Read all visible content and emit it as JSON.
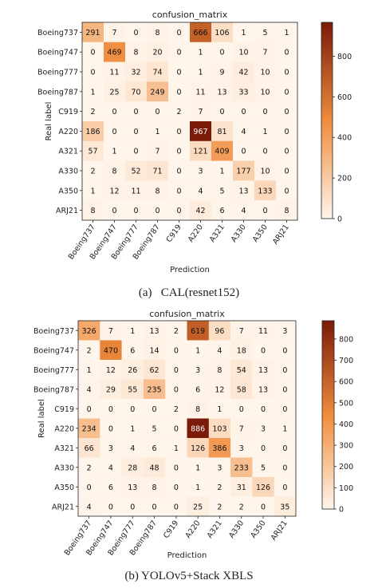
{
  "chart_data": [
    {
      "type": "heatmap",
      "title": "confusion_matrix",
      "xlabel": "Prediction",
      "ylabel": "Real label",
      "classes": [
        "Boeing737",
        "Boeing747",
        "Boeing777",
        "Boeing787",
        "C919",
        "A220",
        "A321",
        "A330",
        "A350",
        "ARJ21"
      ],
      "matrix": [
        [
          291,
          7,
          0,
          8,
          0,
          666,
          106,
          1,
          5,
          1
        ],
        [
          0,
          469,
          8,
          20,
          0,
          1,
          0,
          10,
          7,
          0
        ],
        [
          0,
          11,
          32,
          74,
          0,
          1,
          9,
          42,
          10,
          0
        ],
        [
          1,
          25,
          70,
          249,
          0,
          11,
          13,
          33,
          10,
          0
        ],
        [
          2,
          0,
          0,
          0,
          2,
          7,
          0,
          0,
          0,
          0
        ],
        [
          186,
          0,
          0,
          1,
          0,
          967,
          81,
          4,
          1,
          0
        ],
        [
          57,
          1,
          0,
          7,
          0,
          121,
          409,
          0,
          0,
          0
        ],
        [
          2,
          8,
          52,
          71,
          0,
          3,
          1,
          177,
          10,
          0
        ],
        [
          1,
          12,
          11,
          8,
          0,
          4,
          5,
          13,
          133,
          0
        ],
        [
          8,
          0,
          0,
          0,
          0,
          42,
          6,
          4,
          0,
          8
        ]
      ],
      "colorbar": {
        "ticks": [
          0,
          200,
          400,
          600,
          800
        ],
        "max": 967
      },
      "caption": "(a)   CAL(resnet152)"
    },
    {
      "type": "heatmap",
      "title": "confusion_matrix",
      "xlabel": "Prediction",
      "ylabel": "Real label",
      "classes": [
        "Boeing737",
        "Boeing747",
        "Boeing777",
        "Boeing787",
        "C919",
        "A220",
        "A321",
        "A330",
        "A350",
        "ARJ21"
      ],
      "matrix": [
        [
          326,
          7,
          1,
          13,
          2,
          619,
          96,
          7,
          11,
          3
        ],
        [
          2,
          470,
          6,
          14,
          0,
          1,
          4,
          18,
          0,
          0
        ],
        [
          1,
          12,
          26,
          62,
          0,
          3,
          8,
          54,
          13,
          0
        ],
        [
          4,
          29,
          55,
          235,
          0,
          6,
          12,
          58,
          13,
          0
        ],
        [
          0,
          0,
          0,
          0,
          2,
          8,
          1,
          0,
          0,
          0
        ],
        [
          234,
          0,
          1,
          5,
          0,
          886,
          103,
          7,
          3,
          1
        ],
        [
          66,
          3,
          4,
          6,
          1,
          126,
          386,
          3,
          0,
          0
        ],
        [
          2,
          4,
          28,
          48,
          0,
          1,
          3,
          233,
          5,
          0
        ],
        [
          0,
          6,
          13,
          8,
          0,
          1,
          2,
          31,
          126,
          0
        ],
        [
          4,
          0,
          0,
          0,
          0,
          25,
          2,
          2,
          0,
          35
        ]
      ],
      "colorbar": {
        "ticks": [
          0,
          100,
          200,
          300,
          400,
          500,
          600,
          700,
          800
        ],
        "max": 886
      },
      "caption": "(b) YOLOv5+Stack XBLS"
    }
  ],
  "colors": {
    "low": "#fff5eb",
    "mid": "#f08c3c",
    "high": "#7a1a08"
  }
}
